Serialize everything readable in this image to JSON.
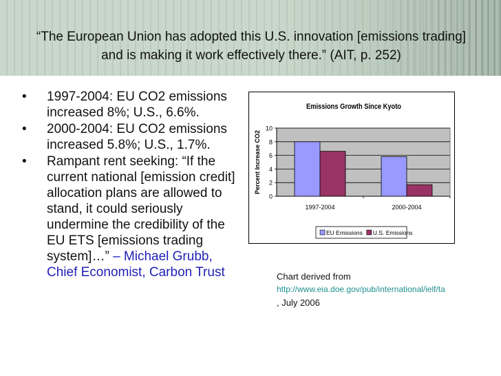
{
  "slide": {
    "title": "“The European Union has adopted this U.S. innovation [emissions trading] and is making it work effectively there.” (AIT, p. 252)",
    "bullets": [
      "1997-2004: EU CO2 emissions increased 8%; U.S., 6.6%.",
      "2000-2004: EU CO2 emissions increased 5.8%; U.S., 1.7%.",
      "Rampant rent seeking: “If the current national [emission credit] allocation plans are allowed to stand, it could seriously undermine the credibility of the EU ETS [emissions trading system]…”"
    ],
    "quote_attribution": "– Michael Grubb, Chief Economist, Carbon Trust",
    "source_prefix": "Chart derived from",
    "source_url": "http://www.eia.doe.gov/pub/international/ielf/ta",
    "source_suffix": ", July 2006"
  },
  "chart_data": {
    "type": "bar",
    "title": "Emissions Growth Since Kyoto",
    "ylabel": "Percent Increase CO2",
    "xlabel": "",
    "categories": [
      "1997-2004",
      "2000-2004"
    ],
    "series": [
      {
        "name": "EU Emissions",
        "values": [
          8,
          5.8
        ],
        "color": "#9999ff"
      },
      {
        "name": "U.S. Emissions",
        "values": [
          6.6,
          1.7
        ],
        "color": "#993366"
      }
    ],
    "ylim": [
      0,
      10
    ],
    "yticks": [
      "0",
      "2",
      "4",
      "6",
      "8",
      "10"
    ],
    "grid": true,
    "plot_background": "#c0c0c0",
    "legend": "bottom"
  }
}
